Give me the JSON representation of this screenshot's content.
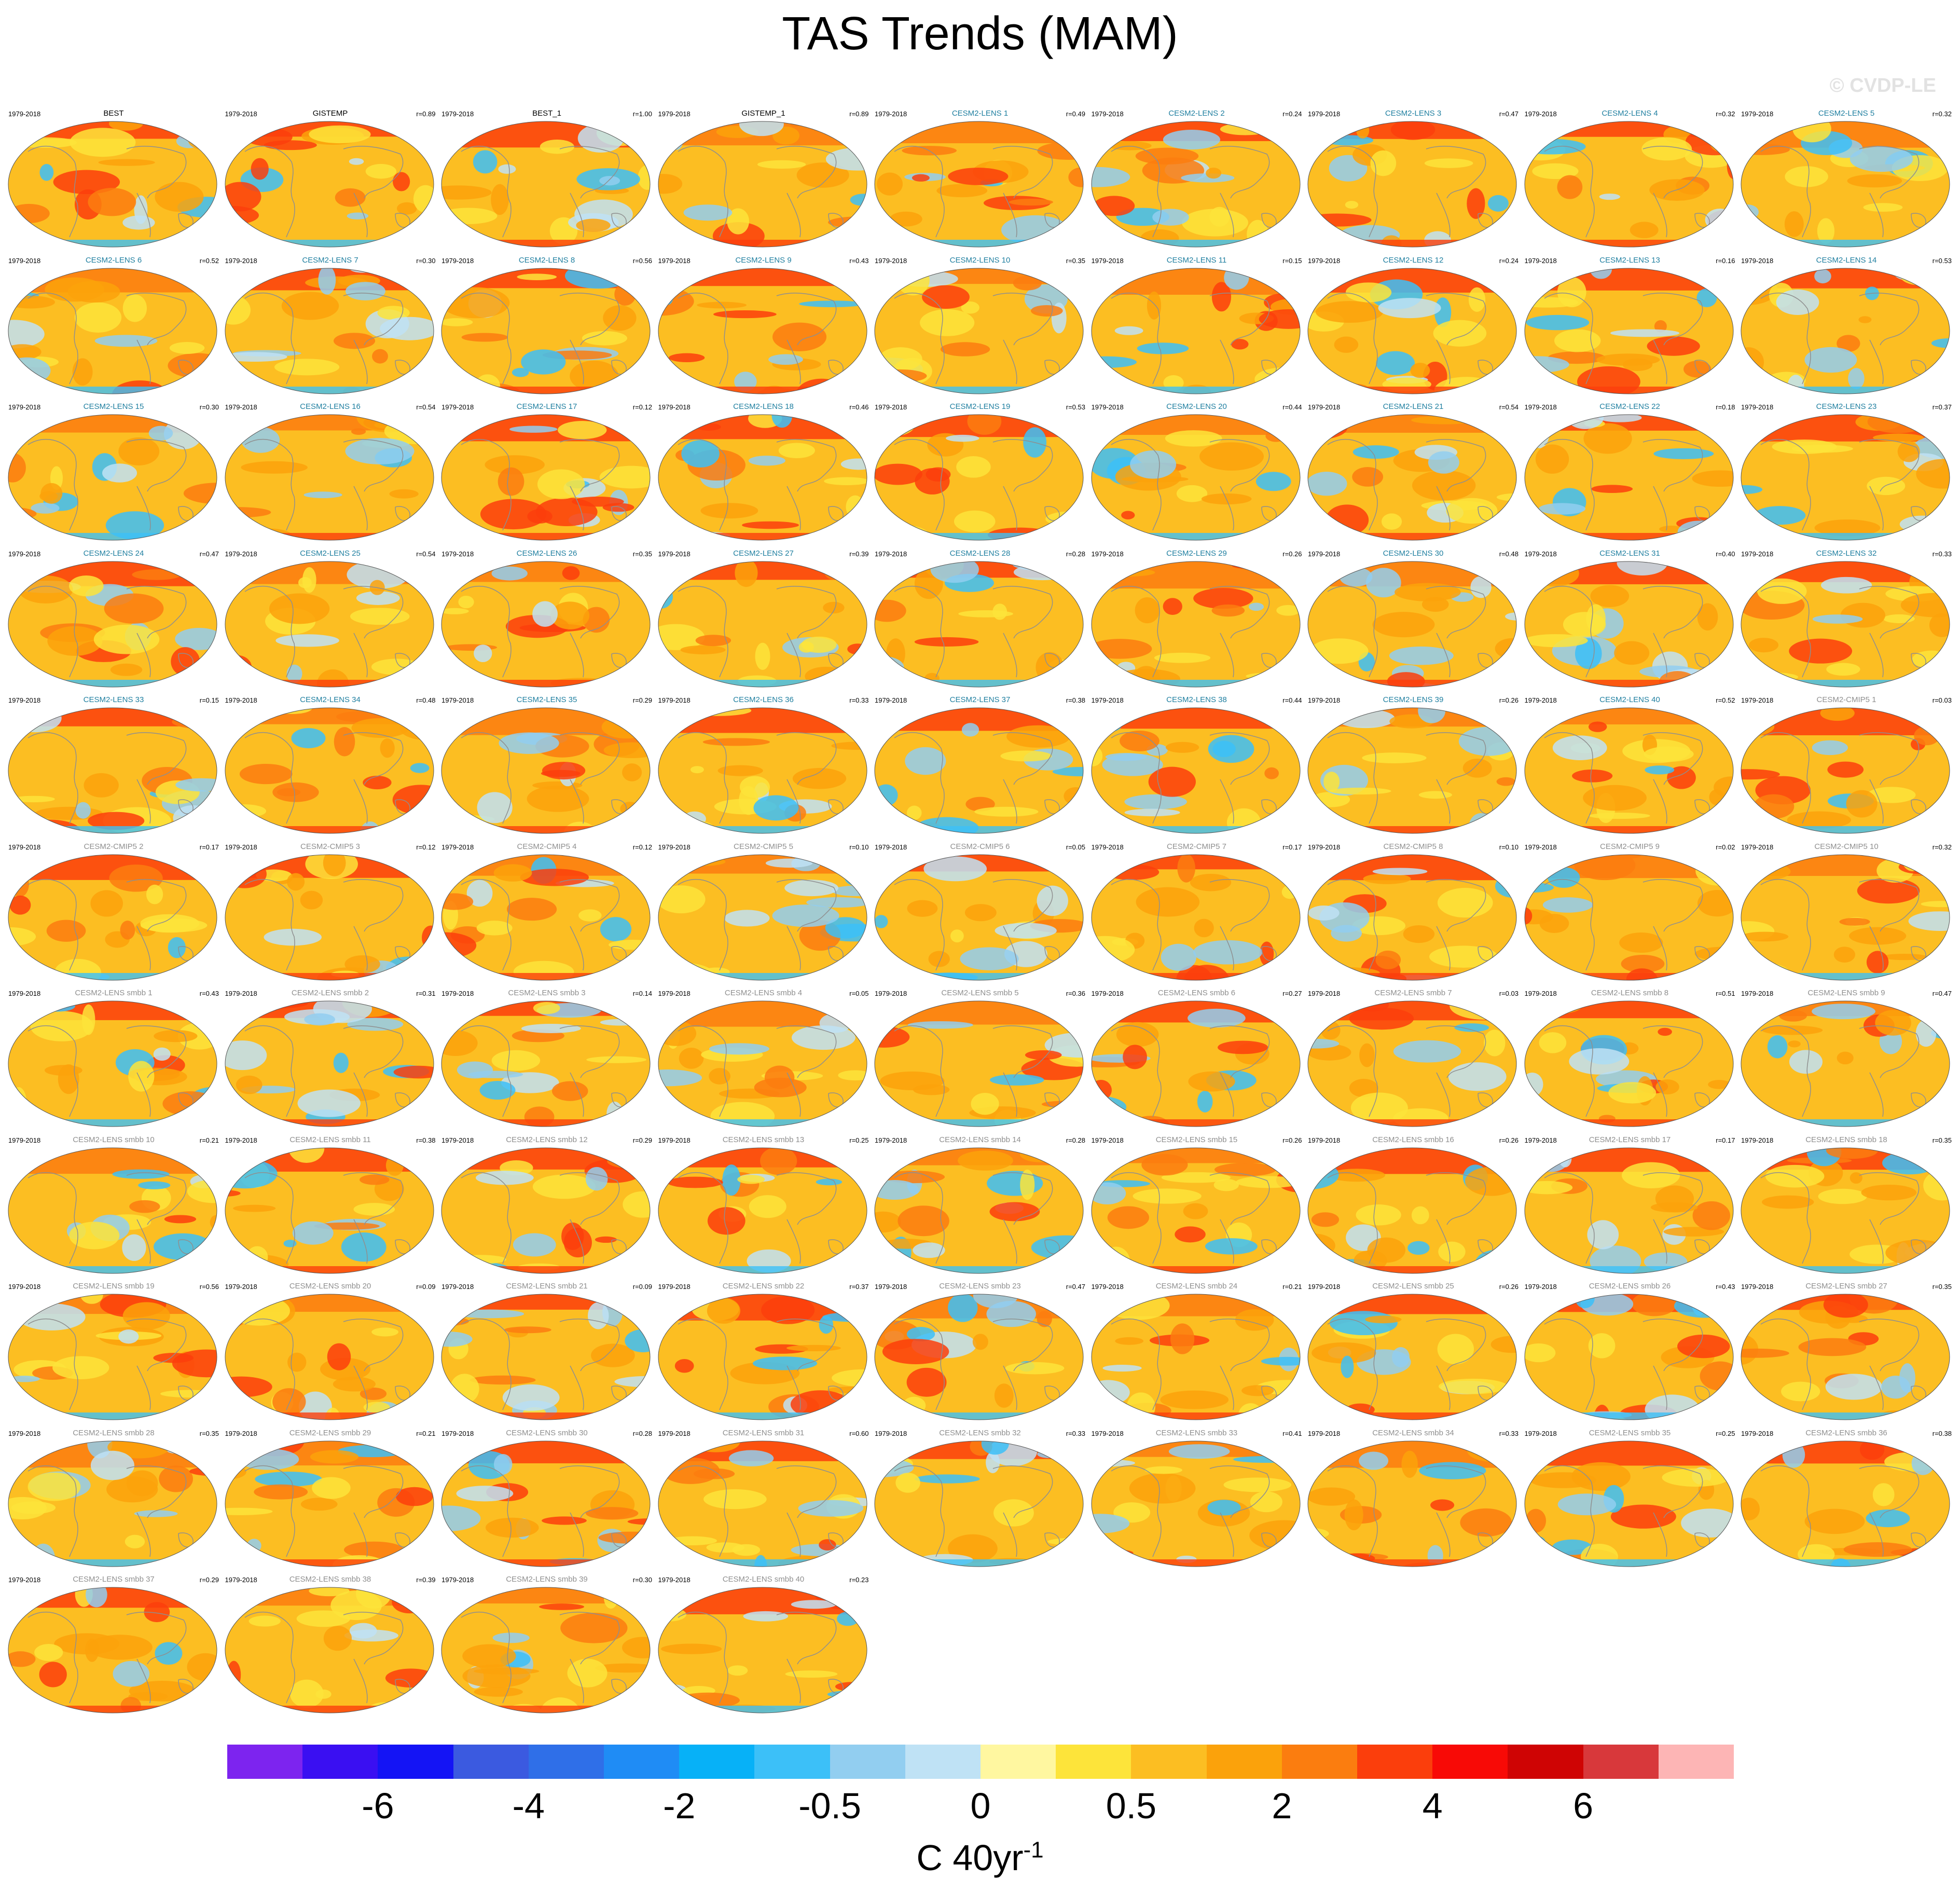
{
  "title": "TAS Trends (MAM)",
  "watermark": "© CVDP-LE",
  "period": "1979-2018",
  "panel_label_colors": {
    "observation": "#000000",
    "CESM2-LENS": "#1f7fa0",
    "CESM2-CMIP5": "#8f8f8f",
    "CESM2-LENS smbb": "#8f8f8f"
  },
  "panels": [
    {
      "label": "BEST",
      "group": "observation",
      "r": ""
    },
    {
      "label": "GISTEMP",
      "group": "observation",
      "r": "r=0.89"
    },
    {
      "label": "BEST_1",
      "group": "observation",
      "r": "r=1.00"
    },
    {
      "label": "GISTEMP_1",
      "group": "observation",
      "r": "r=0.89"
    },
    {
      "label": "CESM2-LENS 1",
      "group": "CESM2-LENS",
      "r": "r=0.49"
    },
    {
      "label": "CESM2-LENS 2",
      "group": "CESM2-LENS",
      "r": "r=0.24"
    },
    {
      "label": "CESM2-LENS 3",
      "group": "CESM2-LENS",
      "r": "r=0.47"
    },
    {
      "label": "CESM2-LENS 4",
      "group": "CESM2-LENS",
      "r": "r=0.32"
    },
    {
      "label": "CESM2-LENS 5",
      "group": "CESM2-LENS",
      "r": "r=0.32"
    },
    {
      "label": "CESM2-LENS 6",
      "group": "CESM2-LENS",
      "r": "r=0.52"
    },
    {
      "label": "CESM2-LENS 7",
      "group": "CESM2-LENS",
      "r": "r=0.30"
    },
    {
      "label": "CESM2-LENS 8",
      "group": "CESM2-LENS",
      "r": "r=0.56"
    },
    {
      "label": "CESM2-LENS 9",
      "group": "CESM2-LENS",
      "r": "r=0.43"
    },
    {
      "label": "CESM2-LENS 10",
      "group": "CESM2-LENS",
      "r": "r=0.35"
    },
    {
      "label": "CESM2-LENS 11",
      "group": "CESM2-LENS",
      "r": "r=0.15"
    },
    {
      "label": "CESM2-LENS 12",
      "group": "CESM2-LENS",
      "r": "r=0.24"
    },
    {
      "label": "CESM2-LENS 13",
      "group": "CESM2-LENS",
      "r": "r=0.16"
    },
    {
      "label": "CESM2-LENS 14",
      "group": "CESM2-LENS",
      "r": "r=0.53"
    },
    {
      "label": "CESM2-LENS 15",
      "group": "CESM2-LENS",
      "r": "r=0.30"
    },
    {
      "label": "CESM2-LENS 16",
      "group": "CESM2-LENS",
      "r": "r=0.54"
    },
    {
      "label": "CESM2-LENS 17",
      "group": "CESM2-LENS",
      "r": "r=0.12"
    },
    {
      "label": "CESM2-LENS 18",
      "group": "CESM2-LENS",
      "r": "r=0.46"
    },
    {
      "label": "CESM2-LENS 19",
      "group": "CESM2-LENS",
      "r": "r=0.53"
    },
    {
      "label": "CESM2-LENS 20",
      "group": "CESM2-LENS",
      "r": "r=0.44"
    },
    {
      "label": "CESM2-LENS 21",
      "group": "CESM2-LENS",
      "r": "r=0.54"
    },
    {
      "label": "CESM2-LENS 22",
      "group": "CESM2-LENS",
      "r": "r=0.18"
    },
    {
      "label": "CESM2-LENS 23",
      "group": "CESM2-LENS",
      "r": "r=0.37"
    },
    {
      "label": "CESM2-LENS 24",
      "group": "CESM2-LENS",
      "r": "r=0.47"
    },
    {
      "label": "CESM2-LENS 25",
      "group": "CESM2-LENS",
      "r": "r=0.54"
    },
    {
      "label": "CESM2-LENS 26",
      "group": "CESM2-LENS",
      "r": "r=0.35"
    },
    {
      "label": "CESM2-LENS 27",
      "group": "CESM2-LENS",
      "r": "r=0.39"
    },
    {
      "label": "CESM2-LENS 28",
      "group": "CESM2-LENS",
      "r": "r=0.28"
    },
    {
      "label": "CESM2-LENS 29",
      "group": "CESM2-LENS",
      "r": "r=0.26"
    },
    {
      "label": "CESM2-LENS 30",
      "group": "CESM2-LENS",
      "r": "r=0.48"
    },
    {
      "label": "CESM2-LENS 31",
      "group": "CESM2-LENS",
      "r": "r=0.40"
    },
    {
      "label": "CESM2-LENS 32",
      "group": "CESM2-LENS",
      "r": "r=0.33"
    },
    {
      "label": "CESM2-LENS 33",
      "group": "CESM2-LENS",
      "r": "r=0.15"
    },
    {
      "label": "CESM2-LENS 34",
      "group": "CESM2-LENS",
      "r": "r=0.48"
    },
    {
      "label": "CESM2-LENS 35",
      "group": "CESM2-LENS",
      "r": "r=0.29"
    },
    {
      "label": "CESM2-LENS 36",
      "group": "CESM2-LENS",
      "r": "r=0.33"
    },
    {
      "label": "CESM2-LENS 37",
      "group": "CESM2-LENS",
      "r": "r=0.38"
    },
    {
      "label": "CESM2-LENS 38",
      "group": "CESM2-LENS",
      "r": "r=0.44"
    },
    {
      "label": "CESM2-LENS 39",
      "group": "CESM2-LENS",
      "r": "r=0.26"
    },
    {
      "label": "CESM2-LENS 40",
      "group": "CESM2-LENS",
      "r": "r=0.52"
    },
    {
      "label": "CESM2-CMIP5 1",
      "group": "CESM2-CMIP5",
      "r": "r=0.03"
    },
    {
      "label": "CESM2-CMIP5 2",
      "group": "CESM2-CMIP5",
      "r": "r=0.17"
    },
    {
      "label": "CESM2-CMIP5 3",
      "group": "CESM2-CMIP5",
      "r": "r=0.12"
    },
    {
      "label": "CESM2-CMIP5 4",
      "group": "CESM2-CMIP5",
      "r": "r=0.12"
    },
    {
      "label": "CESM2-CMIP5 5",
      "group": "CESM2-CMIP5",
      "r": "r=0.10"
    },
    {
      "label": "CESM2-CMIP5 6",
      "group": "CESM2-CMIP5",
      "r": "r=0.05"
    },
    {
      "label": "CESM2-CMIP5 7",
      "group": "CESM2-CMIP5",
      "r": "r=0.17"
    },
    {
      "label": "CESM2-CMIP5 8",
      "group": "CESM2-CMIP5",
      "r": "r=0.10"
    },
    {
      "label": "CESM2-CMIP5 9",
      "group": "CESM2-CMIP5",
      "r": "r=0.02"
    },
    {
      "label": "CESM2-CMIP5 10",
      "group": "CESM2-CMIP5",
      "r": "r=0.32"
    },
    {
      "label": "CESM2-LENS smbb 1",
      "group": "CESM2-LENS smbb",
      "r": "r=0.43"
    },
    {
      "label": "CESM2-LENS smbb 2",
      "group": "CESM2-LENS smbb",
      "r": "r=0.31"
    },
    {
      "label": "CESM2-LENS smbb 3",
      "group": "CESM2-LENS smbb",
      "r": "r=0.14"
    },
    {
      "label": "CESM2-LENS smbb 4",
      "group": "CESM2-LENS smbb",
      "r": "r=0.05"
    },
    {
      "label": "CESM2-LENS smbb 5",
      "group": "CESM2-LENS smbb",
      "r": "r=0.36"
    },
    {
      "label": "CESM2-LENS smbb 6",
      "group": "CESM2-LENS smbb",
      "r": "r=0.27"
    },
    {
      "label": "CESM2-LENS smbb 7",
      "group": "CESM2-LENS smbb",
      "r": "r=0.03"
    },
    {
      "label": "CESM2-LENS smbb 8",
      "group": "CESM2-LENS smbb",
      "r": "r=0.51"
    },
    {
      "label": "CESM2-LENS smbb 9",
      "group": "CESM2-LENS smbb",
      "r": "r=0.47"
    },
    {
      "label": "CESM2-LENS smbb 10",
      "group": "CESM2-LENS smbb",
      "r": "r=0.21"
    },
    {
      "label": "CESM2-LENS smbb 11",
      "group": "CESM2-LENS smbb",
      "r": "r=0.38"
    },
    {
      "label": "CESM2-LENS smbb 12",
      "group": "CESM2-LENS smbb",
      "r": "r=0.29"
    },
    {
      "label": "CESM2-LENS smbb 13",
      "group": "CESM2-LENS smbb",
      "r": "r=0.25"
    },
    {
      "label": "CESM2-LENS smbb 14",
      "group": "CESM2-LENS smbb",
      "r": "r=0.28"
    },
    {
      "label": "CESM2-LENS smbb 15",
      "group": "CESM2-LENS smbb",
      "r": "r=0.26"
    },
    {
      "label": "CESM2-LENS smbb 16",
      "group": "CESM2-LENS smbb",
      "r": "r=0.26"
    },
    {
      "label": "CESM2-LENS smbb 17",
      "group": "CESM2-LENS smbb",
      "r": "r=0.17"
    },
    {
      "label": "CESM2-LENS smbb 18",
      "group": "CESM2-LENS smbb",
      "r": "r=0.35"
    },
    {
      "label": "CESM2-LENS smbb 19",
      "group": "CESM2-LENS smbb",
      "r": "r=0.56"
    },
    {
      "label": "CESM2-LENS smbb 20",
      "group": "CESM2-LENS smbb",
      "r": "r=0.09"
    },
    {
      "label": "CESM2-LENS smbb 21",
      "group": "CESM2-LENS smbb",
      "r": "r=0.09"
    },
    {
      "label": "CESM2-LENS smbb 22",
      "group": "CESM2-LENS smbb",
      "r": "r=0.37"
    },
    {
      "label": "CESM2-LENS smbb 23",
      "group": "CESM2-LENS smbb",
      "r": "r=0.47"
    },
    {
      "label": "CESM2-LENS smbb 24",
      "group": "CESM2-LENS smbb",
      "r": "r=0.21"
    },
    {
      "label": "CESM2-LENS smbb 25",
      "group": "CESM2-LENS smbb",
      "r": "r=0.26"
    },
    {
      "label": "CESM2-LENS smbb 26",
      "group": "CESM2-LENS smbb",
      "r": "r=0.43"
    },
    {
      "label": "CESM2-LENS smbb 27",
      "group": "CESM2-LENS smbb",
      "r": "r=0.35"
    },
    {
      "label": "CESM2-LENS smbb 28",
      "group": "CESM2-LENS smbb",
      "r": "r=0.35"
    },
    {
      "label": "CESM2-LENS smbb 29",
      "group": "CESM2-LENS smbb",
      "r": "r=0.21"
    },
    {
      "label": "CESM2-LENS smbb 30",
      "group": "CESM2-LENS smbb",
      "r": "r=0.28"
    },
    {
      "label": "CESM2-LENS smbb 31",
      "group": "CESM2-LENS smbb",
      "r": "r=0.60"
    },
    {
      "label": "CESM2-LENS smbb 32",
      "group": "CESM2-LENS smbb",
      "r": "r=0.33"
    },
    {
      "label": "CESM2-LENS smbb 33",
      "group": "CESM2-LENS smbb",
      "r": "r=0.41"
    },
    {
      "label": "CESM2-LENS smbb 34",
      "group": "CESM2-LENS smbb",
      "r": "r=0.33"
    },
    {
      "label": "CESM2-LENS smbb 35",
      "group": "CESM2-LENS smbb",
      "r": "r=0.25"
    },
    {
      "label": "CESM2-LENS smbb 36",
      "group": "CESM2-LENS smbb",
      "r": "r=0.38"
    },
    {
      "label": "CESM2-LENS smbb 37",
      "group": "CESM2-LENS smbb",
      "r": "r=0.29"
    },
    {
      "label": "CESM2-LENS smbb 38",
      "group": "CESM2-LENS smbb",
      "r": "r=0.39"
    },
    {
      "label": "CESM2-LENS smbb 39",
      "group": "CESM2-LENS smbb",
      "r": "r=0.30"
    },
    {
      "label": "CESM2-LENS smbb 40",
      "group": "CESM2-LENS smbb",
      "r": "r=0.23"
    }
  ],
  "colorbar": {
    "colors": [
      "#7d24ef",
      "#3a0ff2",
      "#1414f5",
      "#3b5ae0",
      "#2f6fe8",
      "#1f8cf5",
      "#07b1f7",
      "#3cc0f8",
      "#92cef0",
      "#bfe2f5",
      "#fff7a0",
      "#fde43a",
      "#fcbe22",
      "#fba20b",
      "#fb7d0f",
      "#fb3e0c",
      "#f80a06",
      "#cf0404",
      "#d8383b",
      "#fdb5b5"
    ],
    "tick_labels": [
      "-6",
      "-4",
      "-2",
      "-0.5",
      "0",
      "0.5",
      "2",
      "4",
      "6"
    ],
    "units": "C 40yr",
    "units_exponent": "-1"
  }
}
